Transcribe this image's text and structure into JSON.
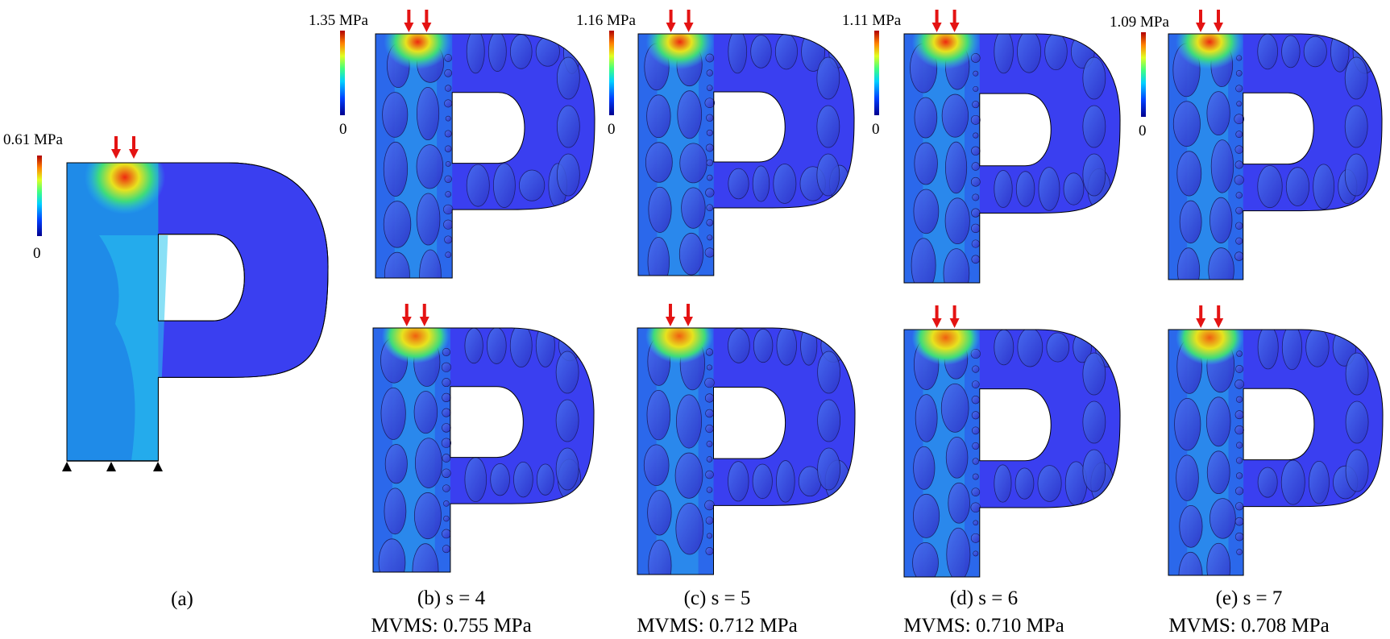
{
  "colors": {
    "background": "#3a3ff0",
    "low": "#1f8be8",
    "medium": "#28c6ee",
    "green": "#3fdc7a",
    "yellow": "#e8e21e",
    "high": "#ee2a10",
    "arrow": "#e41313",
    "support": "#000000"
  },
  "panels": {
    "a": {
      "caption": "(a)",
      "legend_max": "0.61 MPa",
      "legend_min": "0"
    },
    "b": {
      "caption": "(b) s = 4",
      "mvms": "MVMS: 0.755 MPa",
      "legend_max": "1.35 MPa",
      "legend_min": "0"
    },
    "c": {
      "caption": "(c) s = 5",
      "mvms": "MVMS: 0.712 MPa",
      "legend_max": "1.16 MPa",
      "legend_min": "0"
    },
    "d": {
      "caption": "(d) s = 6",
      "mvms": "MVMS: 0.710 MPa",
      "legend_max": "1.11 MPa",
      "legend_min": "0"
    },
    "e": {
      "caption": "(e) s = 7",
      "mvms": "MVMS: 0.708 MPa",
      "legend_max": "1.09 MPa",
      "legend_min": "0"
    }
  }
}
